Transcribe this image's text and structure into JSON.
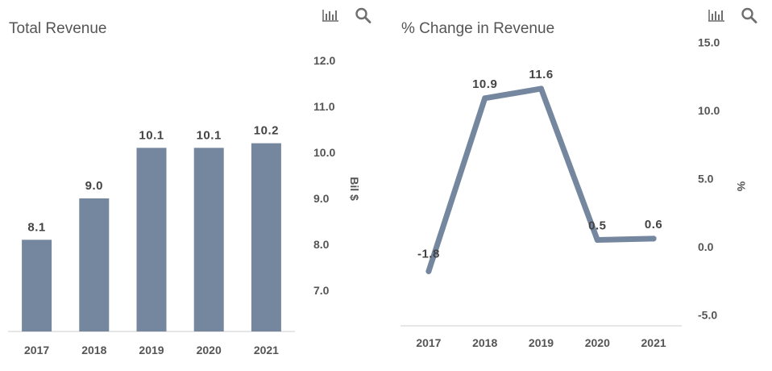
{
  "icons": {
    "chart_menu": "bar-chart-icon",
    "zoom": "search-icon"
  },
  "colors": {
    "series": "#75879f",
    "axis": "#cccccc",
    "text": "#555555"
  },
  "chart_data": [
    {
      "type": "bar",
      "title": "Total Revenue",
      "categories": [
        "2017",
        "2018",
        "2019",
        "2020",
        "2021"
      ],
      "values": [
        8.1,
        9.0,
        10.1,
        10.1,
        10.2
      ],
      "value_labels": [
        "8.1",
        "9.0",
        "10.1",
        "10.1",
        "10.2"
      ],
      "ylabel": "Bil $",
      "yticks": [
        "7.0",
        "8.0",
        "9.0",
        "10.0",
        "11.0",
        "12.0"
      ],
      "ylim": [
        6.0,
        12.0
      ],
      "grid": false
    },
    {
      "type": "line",
      "title": "% Change in Revenue",
      "categories": [
        "2017",
        "2018",
        "2019",
        "2020",
        "2021"
      ],
      "values": [
        -1.8,
        10.9,
        11.6,
        0.5,
        0.6
      ],
      "value_labels": [
        "-1.8",
        "10.9",
        "11.6",
        "0.5",
        "0.6"
      ],
      "ylabel": "%",
      "yticks": [
        "-5.0",
        "0.0",
        "5.0",
        "10.0",
        "15.0"
      ],
      "ylim": [
        -5.0,
        15.0
      ],
      "grid": false
    }
  ]
}
